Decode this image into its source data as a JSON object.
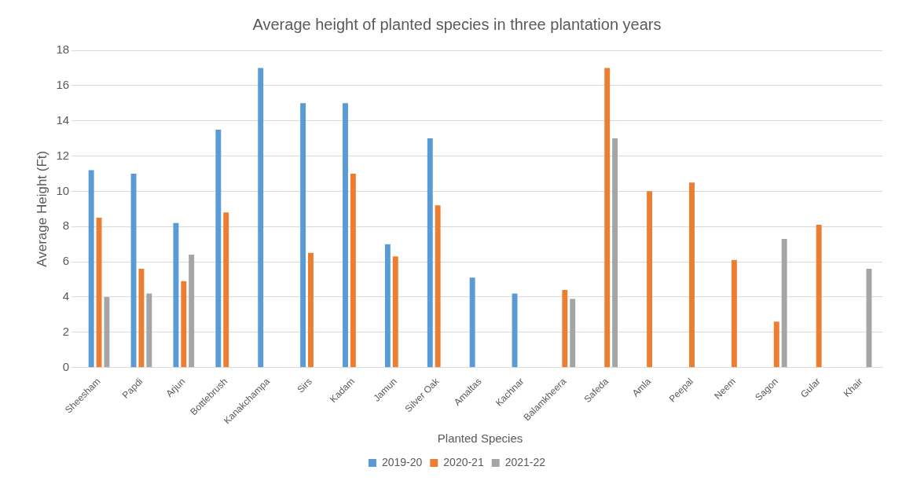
{
  "chart_data": {
    "type": "bar",
    "title": "Average height of planted species in three plantation years",
    "xlabel": "Planted Species",
    "ylabel": "Average Height (Ft)",
    "categories": [
      "Sheesham",
      "Papdi",
      "Arjun",
      "Bottlebrush",
      "Kanakchampa",
      "Sirs",
      "Kadam",
      "Jamun",
      "Silver Oak",
      "Amaltas",
      "Kachnar",
      "Balamkheera",
      "Safeda",
      "Amla",
      "Peepal",
      "Neem",
      "Sagon",
      "Gular",
      "Khair"
    ],
    "series": [
      {
        "name": "2019-20",
        "color": "#5b9bd5",
        "values": [
          11.2,
          11,
          8.2,
          13.5,
          17,
          15,
          15,
          7,
          13,
          5.1,
          4.2,
          null,
          null,
          null,
          null,
          null,
          null,
          null,
          null
        ]
      },
      {
        "name": "2020-21",
        "color": "#ed7d31",
        "values": [
          8.5,
          5.6,
          4.9,
          8.8,
          null,
          6.5,
          11,
          6.3,
          9.2,
          null,
          null,
          4.4,
          17,
          10,
          10.5,
          6.1,
          2.6,
          8.1,
          null
        ]
      },
      {
        "name": "2021-22",
        "color": "#a5a5a5",
        "values": [
          4,
          4.2,
          6.4,
          null,
          null,
          null,
          null,
          null,
          null,
          null,
          null,
          3.9,
          13,
          null,
          null,
          null,
          7.3,
          null,
          5.6
        ]
      }
    ],
    "ylim": [
      0,
      18
    ],
    "yticks": [
      0,
      2,
      4,
      6,
      8,
      10,
      12,
      14,
      16,
      18
    ],
    "grid": "y",
    "legend": "bottom"
  }
}
